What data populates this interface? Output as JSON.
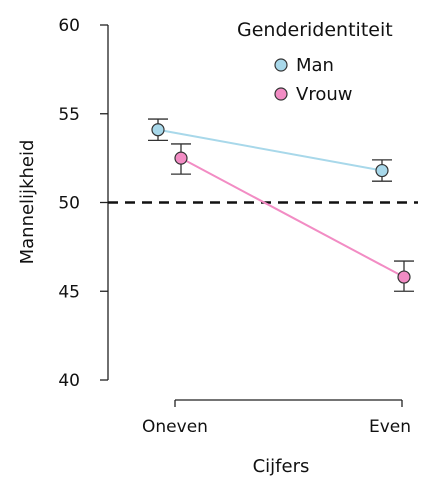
{
  "chart_data": {
    "type": "line",
    "title": "",
    "xlabel": "Cijfers",
    "ylabel": "Mannelijkheid",
    "categories": [
      "Oneven",
      "Even"
    ],
    "ylim": [
      40,
      60
    ],
    "yticks": [
      "40",
      "45",
      "50",
      "55",
      "60"
    ],
    "reference_line": 50,
    "legend_title": "Genderidentiteit",
    "legend_position": "top-right",
    "grid": false,
    "series": [
      {
        "name": "Man",
        "color": "#a8d8ea",
        "values": [
          54.1,
          51.8
        ],
        "error_low": [
          53.5,
          51.2
        ],
        "error_high": [
          54.7,
          52.4
        ]
      },
      {
        "name": "Vrouw",
        "color": "#f28cc4",
        "values": [
          52.5,
          45.8
        ],
        "error_low": [
          51.6,
          45.0
        ],
        "error_high": [
          53.3,
          46.7
        ]
      }
    ]
  }
}
